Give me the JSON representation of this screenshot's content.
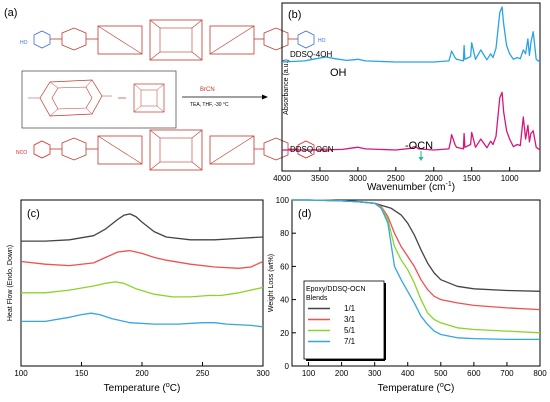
{
  "panels": {
    "a": {
      "label": "(a)"
    },
    "b": {
      "label": "(b)"
    },
    "c": {
      "label": "(c)"
    },
    "d": {
      "label": "(d)"
    }
  },
  "scheme": {
    "reagent": "BrCN",
    "conditions": "TEA, THF, -30 °C",
    "reactant_end_group": "HO",
    "product_end_group": "NCO",
    "colors": {
      "reactant": "#3a6fd8",
      "product": "#d62728",
      "core": "#c0392b"
    }
  },
  "chart_data": [
    {
      "panel": "b",
      "type": "line",
      "xlabel": "Wavenumber (cm",
      "xlabel_sup": "-1",
      "xlabel_end": ")",
      "ylabel": "Absorbance (a.u.)",
      "xlim": [
        4000,
        600
      ],
      "x_reversed": true,
      "xticks": [
        4000,
        3500,
        3000,
        2500,
        2000,
        1500,
        1000
      ],
      "yticks_visible": false,
      "series": [
        {
          "name": "DDSQ-4OH",
          "color": "#29a3e6",
          "offset": 1.0,
          "x": [
            4000,
            3700,
            3550,
            3420,
            3300,
            3150,
            3060,
            3000,
            2900,
            2500,
            2000,
            1800,
            1780,
            1765,
            1720,
            1700,
            1610,
            1600,
            1590,
            1515,
            1500,
            1450,
            1380,
            1300,
            1250,
            1220,
            1180,
            1130,
            1100,
            1080,
            1040,
            1000,
            950,
            900,
            860,
            820,
            790,
            760,
            740,
            720,
            690,
            650,
            600
          ],
          "y": [
            0.0,
            0.02,
            0.06,
            0.09,
            0.06,
            0.03,
            0.04,
            0.05,
            0.02,
            0.0,
            0.0,
            0.02,
            0.12,
            0.2,
            0.08,
            0.05,
            0.02,
            0.3,
            0.05,
            0.1,
            0.35,
            0.05,
            0.22,
            0.04,
            0.15,
            0.08,
            0.25,
            0.9,
            1.0,
            0.7,
            0.3,
            0.15,
            0.05,
            0.08,
            0.06,
            0.22,
            0.15,
            0.42,
            0.12,
            0.35,
            0.55,
            0.05,
            0.0
          ]
        },
        {
          "name": "DDSQ-OCN",
          "color": "#d6177a",
          "offset": 0.0,
          "x": [
            4000,
            3500,
            3200,
            3060,
            3000,
            2900,
            2500,
            2300,
            2260,
            2230,
            2200,
            2000,
            1800,
            1780,
            1765,
            1720,
            1700,
            1610,
            1600,
            1590,
            1515,
            1500,
            1450,
            1380,
            1300,
            1250,
            1220,
            1180,
            1130,
            1100,
            1080,
            1040,
            1000,
            950,
            900,
            860,
            820,
            790,
            760,
            740,
            720,
            690,
            650,
            600
          ],
          "y": [
            0.0,
            0.0,
            0.01,
            0.04,
            0.05,
            0.02,
            0.0,
            0.03,
            0.06,
            0.05,
            0.02,
            0.0,
            0.02,
            0.15,
            0.28,
            0.1,
            0.05,
            0.02,
            0.3,
            0.05,
            0.1,
            0.32,
            0.05,
            0.2,
            0.04,
            0.16,
            0.1,
            0.25,
            0.95,
            1.05,
            0.7,
            0.35,
            0.2,
            0.06,
            0.1,
            0.08,
            0.6,
            0.2,
            0.45,
            0.15,
            0.3,
            0.35,
            0.05,
            0.0
          ]
        }
      ],
      "annotations": [
        "OH",
        "-OCN"
      ]
    },
    {
      "panel": "c",
      "type": "line",
      "xlabel": "Temperature (",
      "xlabel_sup": "o",
      "xlabel_end": "C)",
      "ylabel": "Heat Flow (Endo, Down)",
      "xlim": [
        100,
        300
      ],
      "xticks": [
        100,
        150,
        200,
        250,
        300
      ],
      "ylim": [
        0,
        1
      ],
      "yticks_visible": false,
      "series": [
        {
          "color": "#444444",
          "x": [
            100,
            120,
            140,
            160,
            170,
            180,
            185,
            190,
            195,
            200,
            210,
            220,
            240,
            260,
            280,
            300
          ],
          "y": [
            0.83,
            0.83,
            0.84,
            0.87,
            0.92,
            0.99,
            1.02,
            1.03,
            1.01,
            0.97,
            0.9,
            0.86,
            0.84,
            0.84,
            0.85,
            0.86
          ]
        },
        {
          "color": "#f05050",
          "x": [
            100,
            120,
            140,
            160,
            170,
            180,
            190,
            200,
            210,
            220,
            240,
            260,
            280,
            290,
            300
          ],
          "y": [
            0.68,
            0.66,
            0.65,
            0.67,
            0.71,
            0.75,
            0.76,
            0.74,
            0.71,
            0.69,
            0.66,
            0.64,
            0.63,
            0.64,
            0.68
          ]
        },
        {
          "color": "#8ad42a",
          "x": [
            100,
            120,
            140,
            160,
            170,
            178,
            185,
            195,
            210,
            225,
            240,
            255,
            265,
            280,
            300
          ],
          "y": [
            0.45,
            0.45,
            0.47,
            0.5,
            0.52,
            0.53,
            0.52,
            0.48,
            0.44,
            0.42,
            0.42,
            0.43,
            0.43,
            0.45,
            0.49
          ]
        },
        {
          "color": "#36a5e0",
          "x": [
            100,
            120,
            140,
            150,
            158,
            165,
            175,
            190,
            210,
            230,
            250,
            260,
            270,
            290,
            300
          ],
          "y": [
            0.24,
            0.24,
            0.27,
            0.29,
            0.3,
            0.29,
            0.26,
            0.23,
            0.22,
            0.22,
            0.23,
            0.23,
            0.22,
            0.21,
            0.2
          ]
        }
      ]
    },
    {
      "panel": "d",
      "type": "line",
      "xlabel": "Temperature (",
      "xlabel_sup": "o",
      "xlabel_end": "C)",
      "ylabel": "Weight Loss (wt%)",
      "xlim": [
        50,
        800
      ],
      "ylim": [
        0,
        100
      ],
      "xticks": [
        100,
        200,
        300,
        400,
        500,
        600,
        700,
        800
      ],
      "yticks": [
        0,
        20,
        40,
        60,
        80,
        100
      ],
      "legend": {
        "title": [
          "Epoxy/DDSQ-OCN",
          "Blends"
        ],
        "position": "lower-left"
      },
      "series": [
        {
          "name": "1/1",
          "color": "#444444",
          "x": [
            50,
            100,
            200,
            250,
            300,
            350,
            380,
            400,
            420,
            440,
            460,
            480,
            500,
            550,
            600,
            700,
            800
          ],
          "y": [
            100,
            100,
            99.5,
            99,
            98,
            95,
            91,
            86,
            79,
            70,
            62,
            56,
            52,
            48,
            46.5,
            45.5,
            45
          ]
        },
        {
          "name": "3/1",
          "color": "#f05050",
          "x": [
            50,
            100,
            200,
            250,
            300,
            320,
            340,
            360,
            380,
            400,
            420,
            440,
            460,
            480,
            500,
            550,
            600,
            700,
            800
          ],
          "y": [
            100,
            100,
            99.5,
            99,
            98,
            96,
            90,
            80,
            72,
            66,
            60,
            52,
            46,
            42,
            40,
            38,
            36.5,
            35,
            34
          ]
        },
        {
          "name": "5/1",
          "color": "#8ad42a",
          "x": [
            50,
            100,
            200,
            250,
            300,
            320,
            340,
            360,
            380,
            400,
            420,
            440,
            460,
            480,
            500,
            550,
            600,
            700,
            800
          ],
          "y": [
            100,
            100,
            99.5,
            99,
            98,
            95.5,
            88,
            72,
            64,
            58,
            50,
            40,
            32,
            28,
            26,
            23,
            22,
            21,
            20
          ]
        },
        {
          "name": "7/1",
          "color": "#36a5e0",
          "x": [
            50,
            100,
            200,
            250,
            300,
            320,
            340,
            360,
            380,
            400,
            420,
            440,
            460,
            480,
            500,
            550,
            600,
            700,
            800
          ],
          "y": [
            100,
            100,
            99.5,
            99,
            98,
            95,
            86,
            60,
            52,
            45,
            38,
            30,
            25,
            21,
            19,
            17,
            16.5,
            16,
            16
          ]
        }
      ]
    }
  ]
}
